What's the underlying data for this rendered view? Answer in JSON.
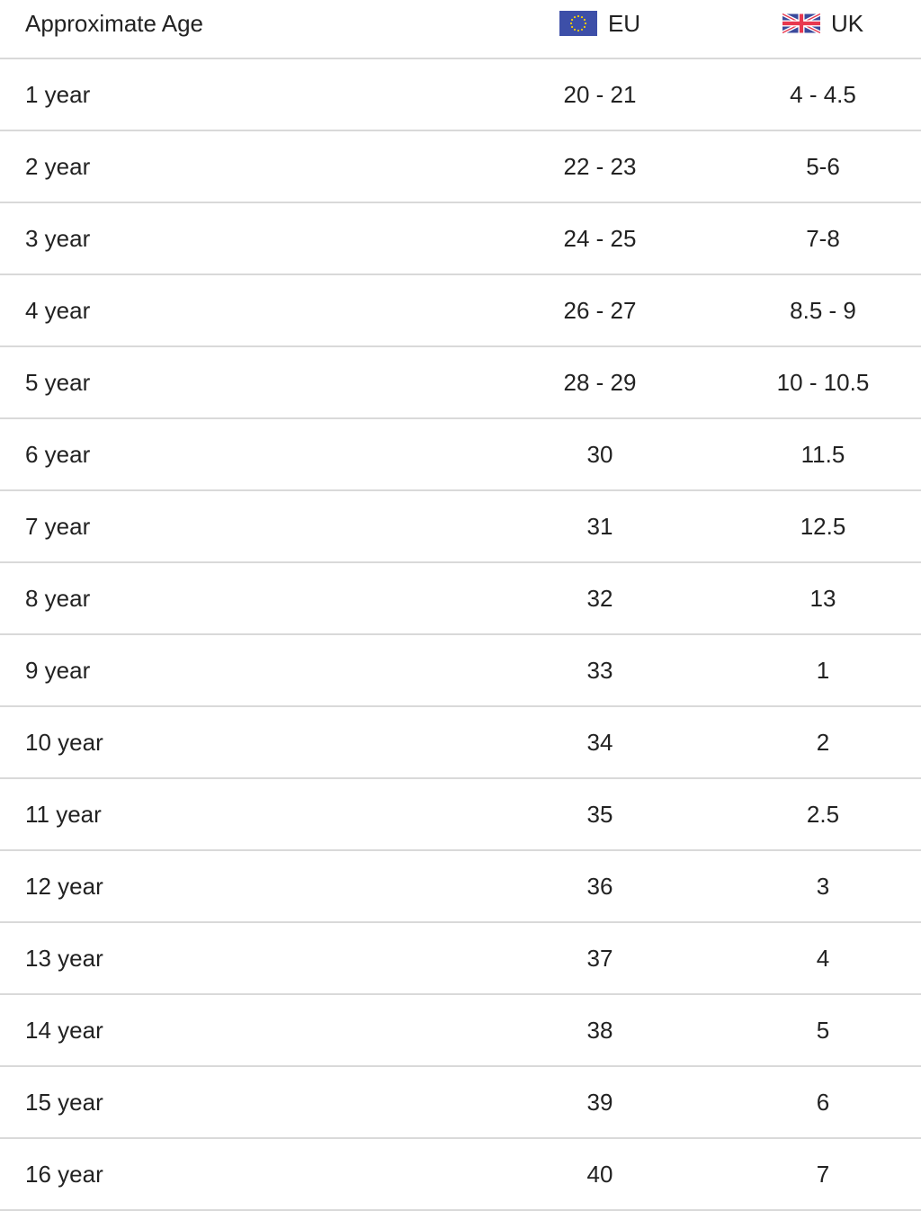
{
  "header": {
    "age": "Approximate Age",
    "eu": "EU",
    "uk": "UK",
    "eu_icon": "eu-flag-icon",
    "uk_icon": "uk-flag-icon"
  },
  "rows": [
    {
      "age": "1 year",
      "eu": "20 - 21",
      "uk": "4 - 4.5"
    },
    {
      "age": "2 year",
      "eu": "22 - 23",
      "uk": "5-6"
    },
    {
      "age": "3 year",
      "eu": "24 - 25",
      "uk": "7-8"
    },
    {
      "age": "4 year",
      "eu": "26 - 27",
      "uk": "8.5 - 9"
    },
    {
      "age": "5 year",
      "eu": "28 - 29",
      "uk": "10 - 10.5"
    },
    {
      "age": "6 year",
      "eu": "30",
      "uk": "11.5"
    },
    {
      "age": "7 year",
      "eu": "31",
      "uk": "12.5"
    },
    {
      "age": "8 year",
      "eu": "32",
      "uk": "13"
    },
    {
      "age": "9 year",
      "eu": "33",
      "uk": "1"
    },
    {
      "age": "10 year",
      "eu": "34",
      "uk": "2"
    },
    {
      "age": "11 year",
      "eu": "35",
      "uk": "2.5"
    },
    {
      "age": "12 year",
      "eu": "36",
      "uk": "3"
    },
    {
      "age": "13 year",
      "eu": "37",
      "uk": "4"
    },
    {
      "age": "14 year",
      "eu": "38",
      "uk": "5"
    },
    {
      "age": "15 year",
      "eu": "39",
      "uk": "6"
    },
    {
      "age": "16 year",
      "eu": "40",
      "uk": "7"
    }
  ]
}
